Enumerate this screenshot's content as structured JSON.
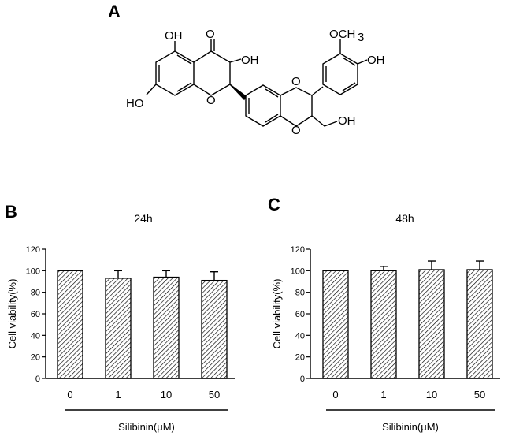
{
  "panels": {
    "structure_letter": "A",
    "chart_letters": [
      "B",
      "C"
    ]
  },
  "structure": {
    "atom_labels": [
      "OH",
      "O",
      "OH",
      "OCH",
      "3",
      "OH",
      "HO",
      "O",
      "O",
      "O",
      "OH"
    ]
  },
  "chart_data": [
    {
      "type": "bar",
      "title": "24h",
      "categories": [
        "0",
        "1",
        "10",
        "50"
      ],
      "values": [
        100,
        93,
        94,
        91
      ],
      "errors": [
        0,
        7,
        6,
        8
      ],
      "xlabel": "Silibinin(μM)",
      "ylabel": "Cell viability(%)",
      "ylim": [
        0,
        120
      ],
      "yticks": [
        0,
        20,
        40,
        60,
        80,
        100,
        120
      ],
      "grid": false,
      "bar_fill": "hatched"
    },
    {
      "type": "bar",
      "title": "48h",
      "categories": [
        "0",
        "1",
        "10",
        "50"
      ],
      "values": [
        100,
        100,
        101,
        101
      ],
      "errors": [
        0,
        4,
        8,
        8
      ],
      "xlabel": "Silibinin(μM)",
      "ylabel": "Cell viability(%)",
      "ylim": [
        0,
        120
      ],
      "yticks": [
        0,
        20,
        40,
        60,
        80,
        100,
        120
      ],
      "grid": false,
      "bar_fill": "hatched"
    }
  ]
}
